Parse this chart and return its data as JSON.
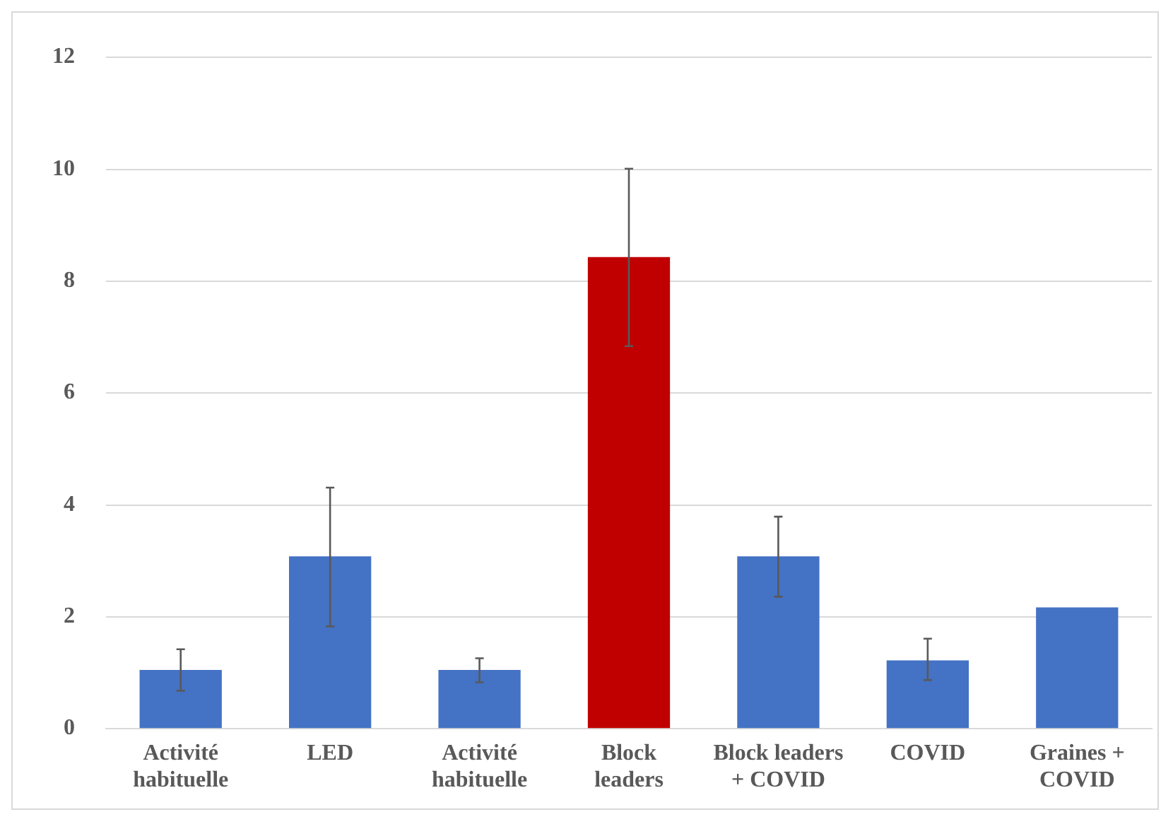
{
  "chart_data": {
    "type": "bar",
    "categories": [
      "Activité\nhabituelle",
      "LED",
      "Activité\nhabituelle",
      "Block\nleaders",
      "Block leaders\n+ COVID",
      "COVID",
      "Graines +\nCOVID"
    ],
    "values": [
      1.05,
      3.08,
      1.05,
      8.43,
      3.08,
      1.22,
      2.17
    ],
    "colors": [
      "#4472c4",
      "#4472c4",
      "#4472c4",
      "#c00000",
      "#4472c4",
      "#4472c4",
      "#4472c4"
    ],
    "errors": [
      [
        0.68,
        1.42
      ],
      [
        1.83,
        4.31
      ],
      [
        0.83,
        1.26
      ],
      [
        6.84,
        10.01
      ],
      [
        2.36,
        3.79
      ],
      [
        0.87,
        1.61
      ],
      null
    ],
    "ylim": [
      0,
      12
    ],
    "yticks": [
      0,
      2,
      4,
      6,
      8,
      10,
      12
    ],
    "grid": "y",
    "legend": false
  }
}
